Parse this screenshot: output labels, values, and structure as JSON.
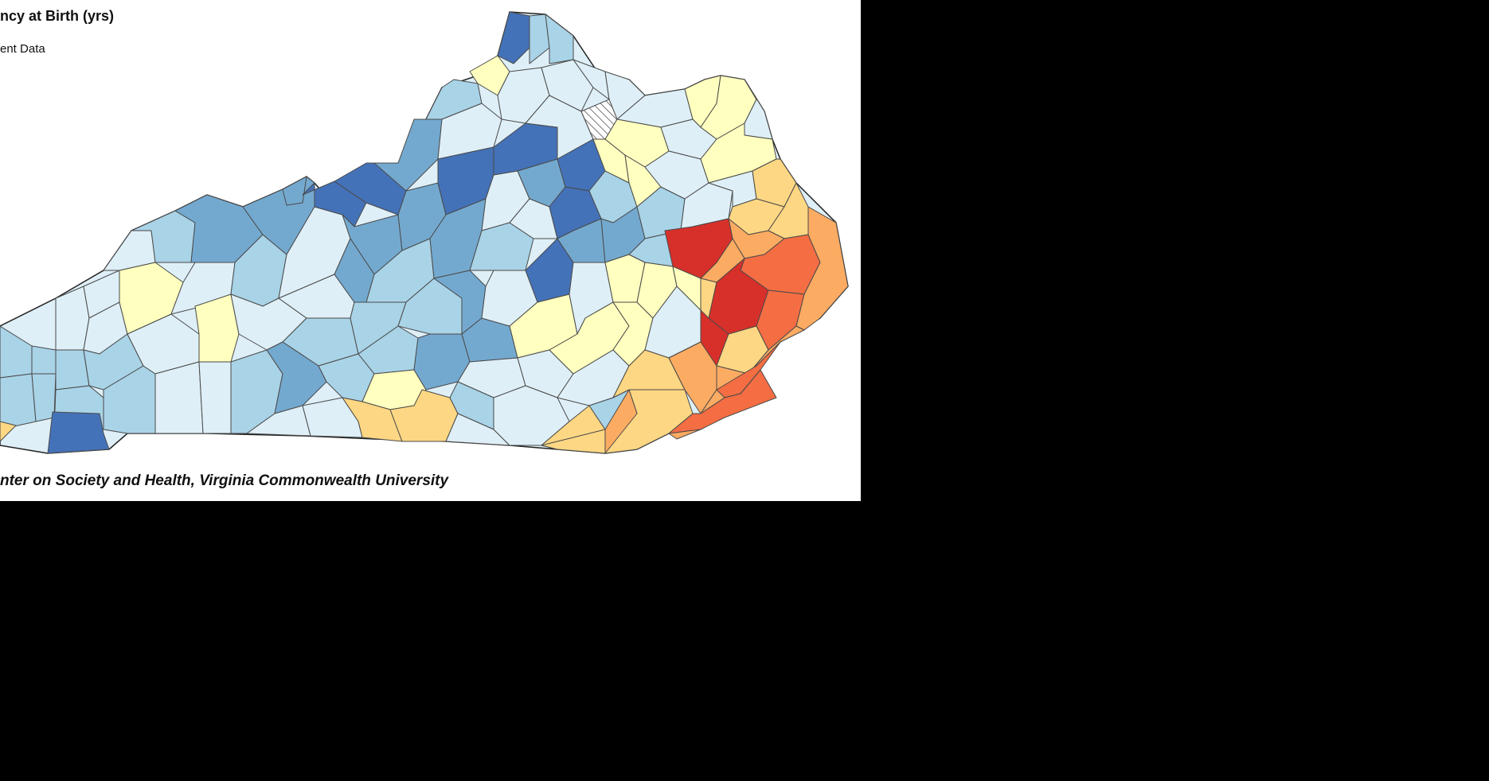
{
  "legend": {
    "title": "ncy at Birth (yrs)",
    "insufficient_label": "ent Data"
  },
  "source": {
    "credit": "nter on Society and Health, Virginia Commonwealth University"
  },
  "palette": {
    "dark_blue": "#4472b8",
    "medium_blue": "#74a9cf",
    "light_blue": "#a9d3e7",
    "pale_blue": "#deeff7",
    "pale_yellow": "#ffffbf",
    "light_orange": "#fdd783",
    "orange": "#fcab62",
    "red_orange": "#f46d43",
    "red": "#d7302a",
    "outline": "#333333",
    "background": "#ffffff",
    "letterbox": "#000000"
  },
  "map": {
    "region": "Kentucky counties",
    "no_data_pattern": "hatched"
  }
}
